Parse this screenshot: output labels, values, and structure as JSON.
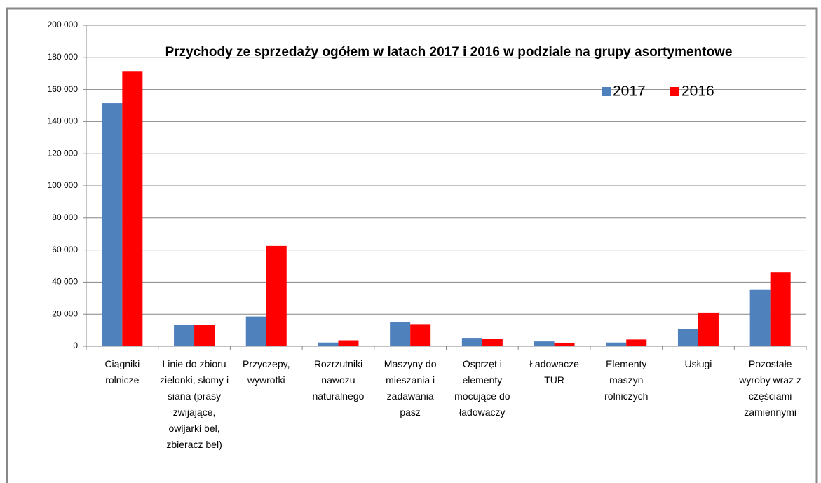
{
  "chart_data": {
    "type": "bar",
    "title": "Przychody ze sprzedaży ogółem w latach 2017 i 2016 w podziale na grupy asortymentowe",
    "categories": [
      "Ciągniki rolnicze",
      "Linie do zbioru zielonki, słomy i siana (prasy zwijające, owijarki bel, zbieracz bel)",
      "Przyczepy, wywrotki",
      "Rozrzutniki nawozu naturalnego",
      "Maszyny do mieszania i zadawania pasz",
      "Osprzęt i elementy mocujące do ładowaczy",
      "Ładowacze TUR",
      "Elementy maszyn rolniczych",
      "Usługi",
      "Pozostałe wyroby wraz z częściami zamiennymi"
    ],
    "series": [
      {
        "name": "2017",
        "color": "#4f81bd",
        "values": [
          151500,
          13500,
          18500,
          2300,
          15000,
          5200,
          3000,
          2300,
          10800,
          35500
        ]
      },
      {
        "name": "2016",
        "color": "#ff0000",
        "values": [
          171500,
          13500,
          62500,
          3700,
          13800,
          4500,
          2200,
          4200,
          21000,
          46200
        ]
      }
    ],
    "ylim": [
      0,
      200000
    ],
    "yticks": [
      0,
      {
        "value": 20000,
        "label": "20 000"
      },
      {
        "value": 40000,
        "label": "40 000"
      },
      {
        "value": 60000,
        "label": "60 000"
      },
      {
        "value": 80000,
        "label": "80 000"
      },
      {
        "value": 100000,
        "label": "100 000"
      },
      {
        "value": 120000,
        "label": "120 000"
      },
      {
        "value": 140000,
        "label": "140 000"
      },
      {
        "value": 160000,
        "label": "160 000"
      },
      {
        "value": 180000,
        "label": "180 000"
      },
      {
        "value": 200000,
        "label": "200 000"
      }
    ],
    "grid": true
  }
}
